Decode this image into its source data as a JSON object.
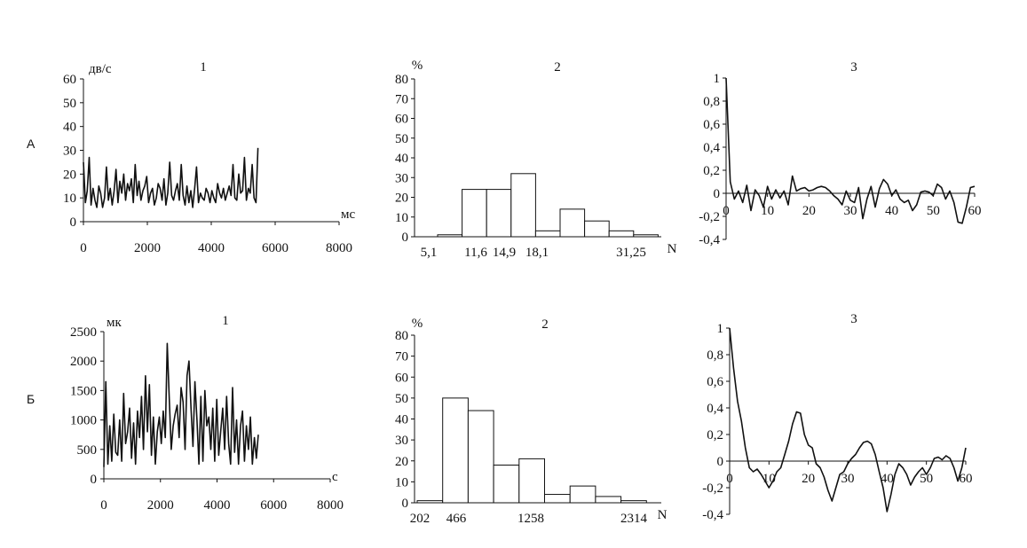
{
  "rows": [
    {
      "label": "А"
    },
    {
      "label": "Б"
    }
  ],
  "chart_data": [
    {
      "id": "A1",
      "type": "line",
      "title": "1",
      "ylabel": "дв/с",
      "xlabel": "мс",
      "xlim": [
        0,
        8000
      ],
      "ylim": [
        0,
        60
      ],
      "xticks": [
        "0",
        "2000",
        "4000",
        "6000",
        "8000"
      ],
      "yticks": [
        "0",
        "10",
        "20",
        "30",
        "40",
        "50",
        "60"
      ],
      "x": [
        0,
        60,
        120,
        180,
        240,
        300,
        360,
        420,
        480,
        540,
        600,
        660,
        720,
        780,
        840,
        900,
        960,
        1020,
        1080,
        1140,
        1200,
        1260,
        1320,
        1380,
        1440,
        1500,
        1560,
        1620,
        1680,
        1740,
        1800,
        1860,
        1920,
        1980,
        2040,
        2100,
        2160,
        2220,
        2280,
        2340,
        2400,
        2460,
        2520,
        2580,
        2640,
        2700,
        2760,
        2820,
        2880,
        2940,
        3000,
        3060,
        3120,
        3180,
        3240,
        3300,
        3360,
        3420,
        3480,
        3540,
        3600,
        3660,
        3720,
        3780,
        3840,
        3900,
        3960,
        4020,
        4080,
        4140,
        4200,
        4260,
        4320,
        4380,
        4440,
        4500,
        4560,
        4620,
        4680,
        4740,
        4800,
        4860,
        4920,
        4980,
        5040,
        5100,
        5160,
        5220,
        5280,
        5340,
        5400,
        5460
      ],
      "y": [
        25,
        8,
        13,
        27,
        7,
        14,
        9,
        6,
        15,
        12,
        6,
        10,
        23,
        9,
        14,
        7,
        13,
        22,
        8,
        17,
        12,
        20,
        9,
        16,
        13,
        18,
        8,
        24,
        11,
        17,
        9,
        13,
        15,
        19,
        8,
        12,
        14,
        7,
        10,
        16,
        14,
        9,
        18,
        7,
        12,
        25,
        11,
        9,
        13,
        16,
        9,
        24,
        11,
        7,
        15,
        8,
        13,
        6,
        14,
        23,
        8,
        12,
        10,
        9,
        14,
        12,
        8,
        13,
        10,
        8,
        16,
        12,
        10,
        14,
        9,
        12,
        15,
        11,
        24,
        10,
        9,
        20,
        12,
        13,
        27,
        9,
        14,
        12,
        24,
        10,
        8,
        31
      ]
    },
    {
      "id": "A2",
      "type": "bar",
      "title": "2",
      "ylabel": "%",
      "xlabel": "N",
      "ylim": [
        0,
        80
      ],
      "yticks": [
        "0",
        "10",
        "20",
        "30",
        "40",
        "50",
        "60",
        "70",
        "80"
      ],
      "xticks": [
        "5,1",
        "11,6",
        "14,9",
        "18,1",
        "31,25"
      ],
      "values": [
        1,
        24,
        24,
        32,
        3,
        14,
        8,
        3,
        1
      ]
    },
    {
      "id": "A3",
      "type": "line",
      "title": "3",
      "xlim": [
        0,
        60
      ],
      "ylim": [
        -0.4,
        1
      ],
      "xticks": [
        "0",
        "10",
        "20",
        "30",
        "40",
        "50",
        "60"
      ],
      "yticks": [
        "1",
        "0,8",
        "0,6",
        "0,4",
        "0,2",
        "0",
        "-0,2",
        "-0,4"
      ],
      "x": [
        0,
        1,
        2,
        3,
        4,
        5,
        6,
        7,
        8,
        9,
        10,
        11,
        12,
        13,
        14,
        15,
        16,
        17,
        18,
        19,
        20,
        21,
        22,
        23,
        24,
        25,
        26,
        27,
        28,
        29,
        30,
        31,
        32,
        33,
        34,
        35,
        36,
        37,
        38,
        39,
        40,
        41,
        42,
        43,
        44,
        45,
        46,
        47,
        48,
        49,
        50,
        51,
        52,
        53,
        54,
        55,
        56,
        57,
        58,
        59,
        60
      ],
      "y": [
        1,
        0.1,
        -0.05,
        0.02,
        -0.08,
        0.07,
        -0.15,
        0.03,
        -0.02,
        -0.12,
        0.06,
        -0.05,
        0.03,
        -0.04,
        0.02,
        -0.1,
        0.15,
        0.02,
        0.04,
        0.05,
        0.02,
        0.03,
        0.05,
        0.06,
        0.05,
        0.02,
        -0.02,
        -0.05,
        -0.1,
        0.02,
        -0.06,
        -0.08,
        0.05,
        -0.22,
        -0.05,
        0.06,
        -0.12,
        0.04,
        0.12,
        0.08,
        -0.02,
        0.03,
        -0.05,
        -0.08,
        -0.06,
        -0.15,
        -0.1,
        0.01,
        0.02,
        0.01,
        -0.02,
        0.08,
        0.05,
        -0.05,
        0.02,
        -0.08,
        -0.25,
        -0.26,
        -0.12,
        0.05,
        0.06
      ]
    },
    {
      "id": "B1",
      "type": "line",
      "title": "1",
      "ylabel": "мк",
      "xlabel": "с",
      "xlim": [
        0,
        8000
      ],
      "ylim": [
        0,
        2500
      ],
      "xticks": [
        "0",
        "2000",
        "4000",
        "6000",
        "8000"
      ],
      "yticks": [
        "0",
        "500",
        "1000",
        "1500",
        "2000",
        "2500"
      ],
      "x": [
        0,
        70,
        140,
        210,
        280,
        350,
        420,
        490,
        560,
        630,
        700,
        770,
        840,
        910,
        980,
        1050,
        1120,
        1190,
        1260,
        1330,
        1400,
        1470,
        1540,
        1610,
        1680,
        1750,
        1820,
        1890,
        1960,
        2030,
        2100,
        2170,
        2240,
        2310,
        2380,
        2450,
        2520,
        2590,
        2660,
        2730,
        2800,
        2870,
        2940,
        3010,
        3080,
        3150,
        3220,
        3290,
        3360,
        3430,
        3500,
        3570,
        3640,
        3710,
        3780,
        3850,
        3920,
        3990,
        4060,
        4130,
        4200,
        4270,
        4340,
        4410,
        4480,
        4550,
        4620,
        4690,
        4760,
        4830,
        4900,
        4970,
        5040,
        5110,
        5180,
        5250,
        5320,
        5390,
        5460
      ],
      "y": [
        200,
        1650,
        250,
        900,
        300,
        1100,
        450,
        400,
        1000,
        300,
        1450,
        600,
        800,
        1200,
        350,
        950,
        250,
        1150,
        700,
        1400,
        500,
        1750,
        800,
        1600,
        400,
        1050,
        250,
        800,
        1050,
        600,
        1150,
        700,
        2300,
        1400,
        500,
        900,
        1100,
        1250,
        700,
        1550,
        1300,
        500,
        1750,
        2000,
        1200,
        550,
        1650,
        1000,
        250,
        1400,
        300,
        1500,
        900,
        1050,
        500,
        1200,
        300,
        1350,
        400,
        800,
        1200,
        500,
        1400,
        600,
        250,
        1550,
        450,
        1000,
        250,
        900,
        1150,
        300,
        900,
        500,
        1050,
        250,
        700,
        350,
        750
      ]
    },
    {
      "id": "B2",
      "type": "bar",
      "title": "2",
      "ylabel": "%",
      "xlabel": "N",
      "ylim": [
        0,
        80
      ],
      "yticks": [
        "0",
        "10",
        "20",
        "30",
        "40",
        "50",
        "60",
        "70",
        "80"
      ],
      "xticks": [
        "202",
        "466",
        "1258",
        "2314"
      ],
      "values": [
        1,
        50,
        44,
        18,
        21,
        4,
        8,
        3,
        1
      ]
    },
    {
      "id": "B3",
      "type": "line",
      "title": "3",
      "xlim": [
        0,
        60
      ],
      "ylim": [
        -0.4,
        1
      ],
      "xticks": [
        "0",
        "10",
        "20",
        "30",
        "40",
        "50",
        "60"
      ],
      "yticks": [
        "1",
        "0,8",
        "0,6",
        "0,4",
        "0,2",
        "0",
        "-0,2",
        "-0,4"
      ],
      "x": [
        0,
        1,
        2,
        3,
        4,
        5,
        6,
        7,
        8,
        9,
        10,
        11,
        12,
        13,
        14,
        15,
        16,
        17,
        18,
        19,
        20,
        21,
        22,
        23,
        24,
        25,
        26,
        27,
        28,
        29,
        30,
        31,
        32,
        33,
        34,
        35,
        36,
        37,
        38,
        39,
        40,
        41,
        42,
        43,
        44,
        45,
        46,
        47,
        48,
        49,
        50,
        51,
        52,
        53,
        54,
        55,
        56,
        57,
        58,
        59,
        60
      ],
      "y": [
        1,
        0.7,
        0.45,
        0.3,
        0.1,
        -0.05,
        -0.08,
        -0.06,
        -0.1,
        -0.15,
        -0.2,
        -0.15,
        -0.08,
        -0.05,
        0.05,
        0.15,
        0.28,
        0.37,
        0.36,
        0.2,
        0.12,
        0.1,
        -0.02,
        -0.05,
        -0.12,
        -0.22,
        -0.3,
        -0.2,
        -0.1,
        -0.08,
        -0.02,
        0.02,
        0.05,
        0.1,
        0.14,
        0.15,
        0.13,
        0.05,
        -0.08,
        -0.2,
        -0.38,
        -0.25,
        -0.1,
        -0.02,
        -0.05,
        -0.1,
        -0.18,
        -0.12,
        -0.08,
        -0.05,
        -0.1,
        -0.05,
        0.02,
        0.03,
        0.01,
        0.04,
        0.02,
        -0.05,
        -0.15,
        -0.05,
        0.1
      ]
    }
  ]
}
